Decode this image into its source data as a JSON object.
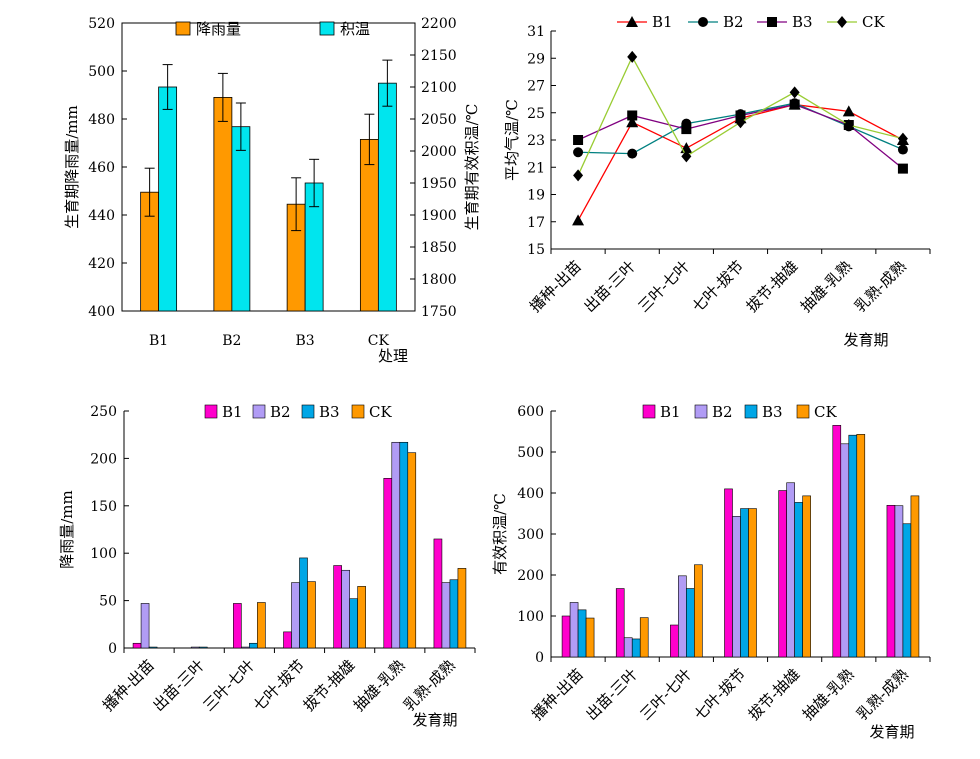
{
  "chart_data": [
    {
      "type": "bar",
      "panel": "top-left",
      "categories": [
        "B1",
        "B2",
        "B3",
        "CK"
      ],
      "xlabel": "处理",
      "ylabel": "生育期降雨量/mm",
      "y2label": "生育期有效积温/℃",
      "ylim": [
        400,
        520
      ],
      "yticks": [
        400,
        420,
        440,
        460,
        480,
        500,
        520
      ],
      "y2lim": [
        1750,
        2200
      ],
      "y2ticks": [
        1750,
        1800,
        1850,
        1900,
        1950,
        2000,
        2050,
        2100,
        2150,
        2200
      ],
      "legend_position": "top",
      "series": [
        {
          "name": "降雨量",
          "axis": "left",
          "color": "#FF9900",
          "values": [
            449.5,
            489,
            444.5,
            471.5
          ],
          "errors": [
            10,
            10,
            11,
            10.5
          ]
        },
        {
          "name": "积温",
          "axis": "right",
          "color": "#00E5EE",
          "values": [
            2100,
            2038,
            1950,
            2106
          ],
          "errors": [
            35,
            37,
            37,
            36
          ]
        }
      ]
    },
    {
      "type": "line",
      "panel": "top-right",
      "categories": [
        "播种-出苗",
        "出苗-三叶",
        "三叶-七叶",
        "七叶-拔节",
        "拔节-抽雄",
        "抽雄-乳熟",
        "乳熟-成熟"
      ],
      "xlabel": "发育期",
      "ylabel": "平均气温/℃",
      "ylim": [
        15,
        31
      ],
      "yticks": [
        15,
        17,
        19,
        21,
        23,
        25,
        27,
        29,
        31
      ],
      "legend_position": "top",
      "series": [
        {
          "name": "B1",
          "marker": "triangle",
          "color": "#FF0000",
          "values": [
            17.1,
            24.3,
            22.4,
            24.6,
            25.6,
            25.1,
            23.0
          ]
        },
        {
          "name": "B2",
          "marker": "circle",
          "color": "#008080",
          "values": [
            22.1,
            22.0,
            24.2,
            24.9,
            25.7,
            24.0,
            22.3
          ]
        },
        {
          "name": "B3",
          "marker": "square",
          "color": "#800080",
          "values": [
            23.0,
            24.8,
            23.8,
            24.8,
            25.6,
            24.1,
            20.9
          ]
        },
        {
          "name": "CK",
          "marker": "diamond",
          "color": "#99CC33",
          "values": [
            20.4,
            29.1,
            21.8,
            24.3,
            26.5,
            24.1,
            23.1
          ]
        }
      ]
    },
    {
      "type": "bar",
      "panel": "bottom-left",
      "categories": [
        "播种-出苗",
        "出苗-三叶",
        "三叶-七叶",
        "七叶-拔节",
        "拔节-抽雄",
        "抽雄-乳熟",
        "乳熟-成熟"
      ],
      "xlabel": "发育期",
      "ylabel": "降雨量/mm",
      "ylim": [
        0,
        250
      ],
      "yticks": [
        0,
        50,
        100,
        150,
        200,
        250
      ],
      "legend_position": "top",
      "series": [
        {
          "name": "B1",
          "color": "#FF00CC",
          "values": [
            5,
            0,
            47,
            17,
            87,
            179,
            115
          ]
        },
        {
          "name": "B2",
          "color": "#B19CF5",
          "values": [
            47,
            1,
            1,
            69,
            82,
            217,
            69
          ]
        },
        {
          "name": "B3",
          "color": "#00A6E6",
          "values": [
            1,
            1,
            5,
            95,
            52,
            217,
            72
          ]
        },
        {
          "name": "CK",
          "color": "#FF9900",
          "values": [
            0,
            0,
            48,
            70,
            65,
            206,
            84
          ]
        }
      ]
    },
    {
      "type": "bar",
      "panel": "bottom-right",
      "categories": [
        "播种-出苗",
        "出苗-三叶",
        "三叶-七叶",
        "七叶-拔节",
        "拔节-抽雄",
        "抽雄-乳熟",
        "乳熟-成熟"
      ],
      "xlabel": "发育期",
      "ylabel": "有效积温/℃",
      "ylim": [
        0,
        600
      ],
      "yticks": [
        0,
        100,
        200,
        300,
        400,
        500,
        600
      ],
      "legend_position": "top",
      "series": [
        {
          "name": "B1",
          "color": "#FF00CC",
          "values": [
            100,
            167,
            78,
            410,
            406,
            565,
            370
          ]
        },
        {
          "name": "B2",
          "color": "#B19CF5",
          "values": [
            133,
            47,
            198,
            343,
            425,
            520,
            369
          ]
        },
        {
          "name": "B3",
          "color": "#00A6E6",
          "values": [
            115,
            44,
            167,
            362,
            377,
            541,
            325
          ]
        },
        {
          "name": "CK",
          "color": "#FF9900",
          "values": [
            95,
            96,
            225,
            362,
            393,
            543,
            393
          ]
        }
      ]
    }
  ]
}
